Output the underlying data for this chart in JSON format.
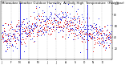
{
  "title": "Milwaukee Weather Outdoor Humidity  At Daily High  Temperature  (Past Year)",
  "ylim": [
    0,
    105
  ],
  "yticks": [
    20,
    40,
    60,
    80,
    100
  ],
  "n_points": 365,
  "seed": 42,
  "blue_color": "#0000dd",
  "red_color": "#dd0000",
  "bg_color": "#ffffff",
  "grid_color": "#888888",
  "title_fontsize": 2.8,
  "tick_fontsize": 2.2,
  "spike1_idx": 60,
  "spike1_val": 100,
  "spike2_idx": 285,
  "spike2_val": 97,
  "month_ticks": [
    0,
    31,
    59,
    90,
    120,
    151,
    181,
    212,
    243,
    273,
    304,
    334,
    365
  ],
  "month_labels": [
    "J",
    "F",
    "M",
    "A",
    "M",
    "J",
    "J",
    "A",
    "S",
    "O",
    "N",
    "D",
    ""
  ]
}
